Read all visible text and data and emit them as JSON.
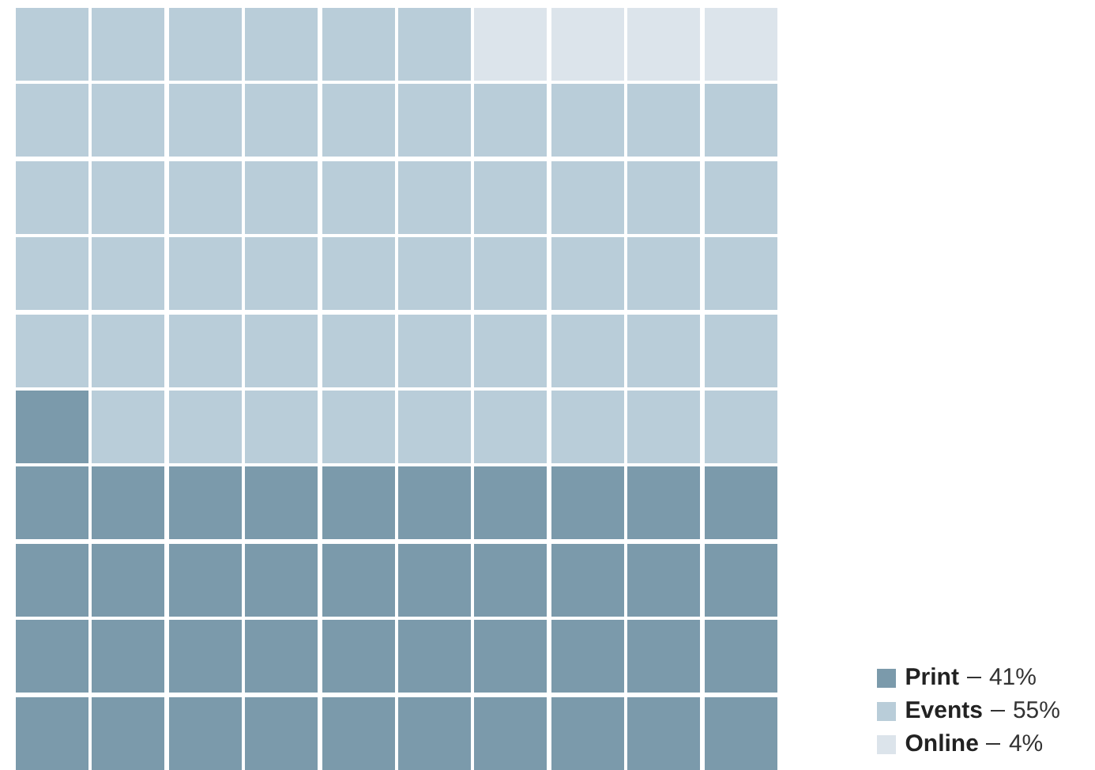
{
  "chart_data": {
    "type": "other",
    "categories": [
      "Print",
      "Events",
      "Online"
    ],
    "values": [
      41,
      55,
      4
    ],
    "value_labels": [
      "41%",
      "55%",
      "4%"
    ],
    "colors": [
      "#7b9aab",
      "#b9cdd9",
      "#dce4eb"
    ]
  }
}
